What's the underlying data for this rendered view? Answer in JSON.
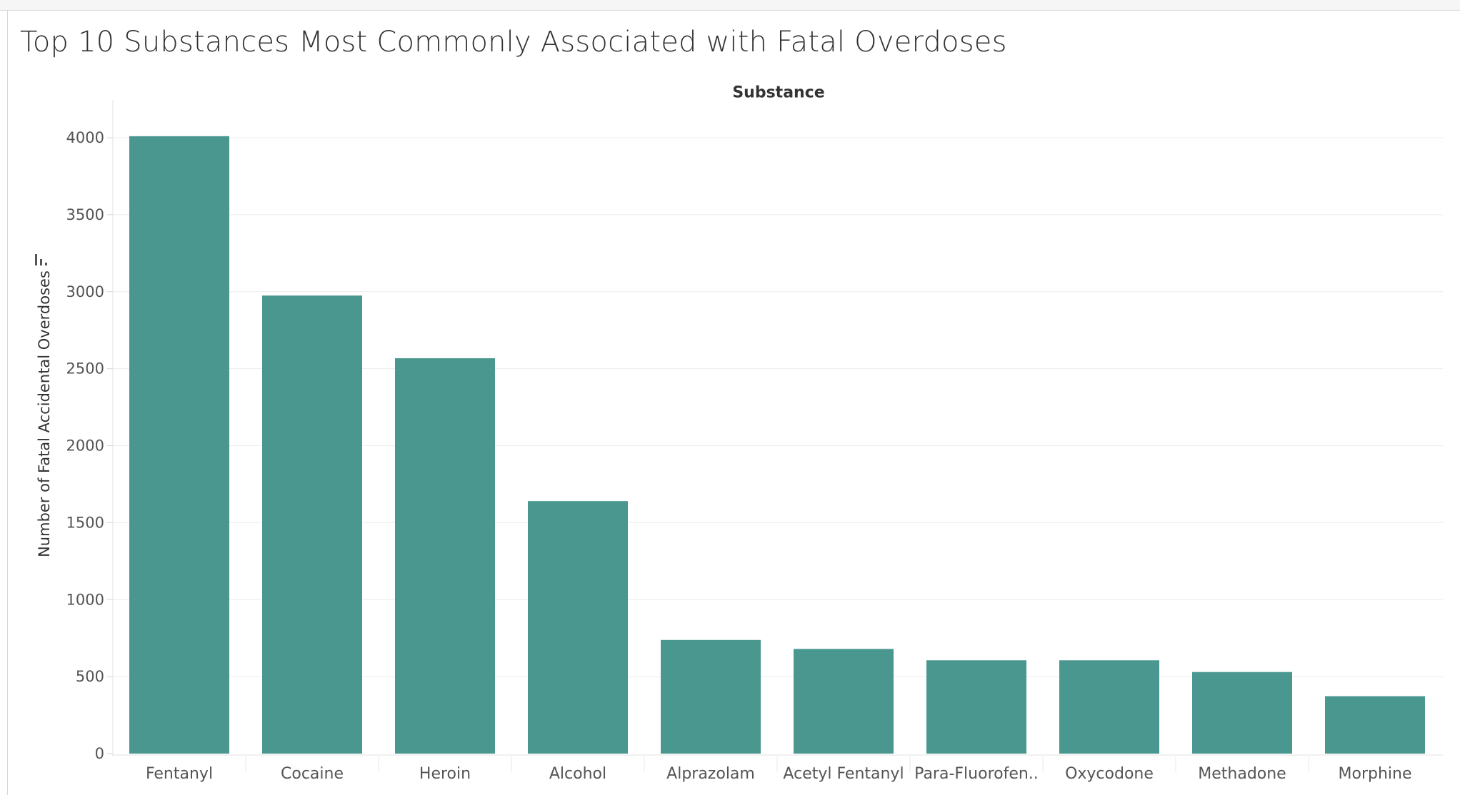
{
  "title": "Top 10 Substances Most Commonly Associated with Fatal Overdoses",
  "colors": {
    "bar": "#4a9790",
    "grid": "#ececec",
    "axis_text": "#555555",
    "title_text": "#333333"
  },
  "icons": {
    "sort": "sort-descending-icon"
  },
  "chart_data": {
    "type": "bar",
    "title": "Top 10 Substances Most Commonly Associated with Fatal Overdoses",
    "xlabel": "Substance",
    "ylabel": "Number of Fatal Accidental Overdoses",
    "categories": [
      "Fentanyl",
      "Cocaine",
      "Heroin",
      "Alcohol",
      "Alprazolam",
      "Acetyl Fentanyl",
      "Para-Fluorofen..",
      "Oxycodone",
      "Methadone",
      "Morphine"
    ],
    "values": [
      4010,
      2975,
      2568,
      1640,
      738,
      680,
      606,
      606,
      530,
      373
    ],
    "ylim": [
      0,
      4000
    ],
    "yticks": [
      0,
      500,
      1000,
      1500,
      2000,
      2500,
      3000,
      3500,
      4000
    ],
    "grid": true,
    "legend": "none"
  }
}
